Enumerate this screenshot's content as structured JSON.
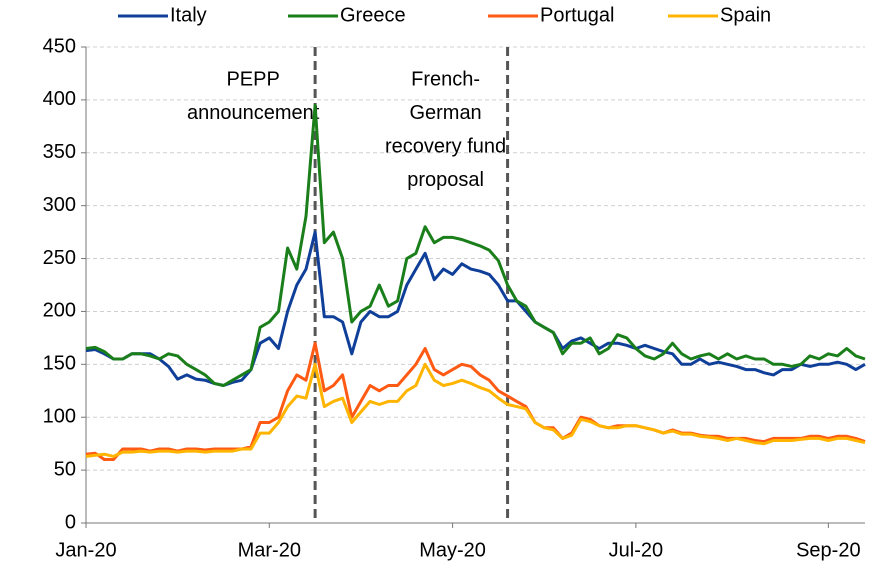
{
  "chart_data": {
    "type": "line",
    "categories": [
      "Jan-20",
      null,
      null,
      null,
      null,
      null,
      null,
      null,
      null,
      null,
      null,
      null,
      null,
      null,
      null,
      null,
      null,
      null,
      null,
      null,
      "Mar-20",
      null,
      null,
      null,
      null,
      null,
      null,
      null,
      null,
      null,
      null,
      null,
      null,
      null,
      null,
      null,
      null,
      null,
      null,
      null,
      "May-20",
      null,
      null,
      null,
      null,
      null,
      null,
      null,
      null,
      null,
      null,
      null,
      null,
      null,
      null,
      null,
      null,
      null,
      null,
      null,
      "Jul-20",
      null,
      null,
      null,
      null,
      null,
      null,
      null,
      null,
      null,
      null,
      null,
      null,
      null,
      null,
      null,
      null,
      null,
      null,
      null,
      null,
      "Sep-20",
      null,
      null,
      null,
      null
    ],
    "series": [
      {
        "name": "Italy",
        "color": "#0f3f99",
        "values": [
          163,
          164,
          160,
          155,
          155,
          160,
          160,
          160,
          155,
          148,
          136,
          140,
          136,
          135,
          132,
          130,
          133,
          135,
          145,
          170,
          175,
          165,
          200,
          225,
          240,
          275,
          195,
          195,
          190,
          160,
          190,
          200,
          195,
          195,
          200,
          225,
          240,
          255,
          230,
          240,
          235,
          245,
          240,
          238,
          235,
          225,
          210,
          210,
          200,
          190,
          185,
          180,
          165,
          172,
          175,
          170,
          165,
          170,
          170,
          168,
          165,
          168,
          165,
          162,
          160,
          150,
          150,
          155,
          150,
          152,
          150,
          148,
          145,
          145,
          142,
          140,
          145,
          145,
          150,
          148,
          150,
          150,
          152,
          150,
          145,
          150
        ]
      },
      {
        "name": "Greece",
        "color": "#1a7f1a",
        "values": [
          165,
          166,
          162,
          155,
          155,
          160,
          160,
          158,
          155,
          160,
          158,
          150,
          145,
          140,
          132,
          130,
          135,
          140,
          145,
          185,
          190,
          200,
          260,
          240,
          290,
          395,
          265,
          275,
          250,
          190,
          200,
          205,
          225,
          205,
          210,
          250,
          255,
          280,
          265,
          270,
          270,
          268,
          265,
          262,
          258,
          248,
          225,
          210,
          205,
          190,
          185,
          180,
          160,
          170,
          170,
          175,
          160,
          165,
          178,
          175,
          165,
          158,
          155,
          160,
          170,
          160,
          155,
          158,
          160,
          155,
          160,
          155,
          158,
          155,
          155,
          150,
          150,
          148,
          150,
          158,
          155,
          160,
          158,
          165,
          158,
          155
        ]
      },
      {
        "name": "Portugal",
        "color": "#ff5a14",
        "values": [
          65,
          66,
          60,
          60,
          70,
          70,
          70,
          68,
          70,
          70,
          68,
          70,
          70,
          69,
          70,
          70,
          70,
          70,
          72,
          95,
          95,
          100,
          125,
          140,
          135,
          170,
          125,
          130,
          140,
          100,
          115,
          130,
          125,
          130,
          130,
          140,
          150,
          165,
          145,
          140,
          145,
          150,
          148,
          140,
          135,
          125,
          120,
          115,
          110,
          95,
          90,
          90,
          80,
          85,
          100,
          98,
          92,
          90,
          92,
          92,
          92,
          90,
          88,
          85,
          88,
          85,
          85,
          83,
          82,
          82,
          80,
          80,
          80,
          78,
          77,
          80,
          80,
          80,
          80,
          82,
          82,
          80,
          82,
          82,
          80,
          77
        ]
      },
      {
        "name": "Spain",
        "color": "#ffb400",
        "values": [
          63,
          64,
          65,
          63,
          67,
          67,
          68,
          67,
          68,
          68,
          67,
          68,
          68,
          67,
          68,
          68,
          68,
          70,
          70,
          85,
          85,
          95,
          110,
          120,
          118,
          150,
          110,
          115,
          118,
          95,
          105,
          115,
          112,
          115,
          115,
          125,
          130,
          150,
          135,
          130,
          132,
          135,
          132,
          128,
          125,
          118,
          112,
          110,
          108,
          95,
          90,
          88,
          80,
          83,
          98,
          96,
          92,
          90,
          90,
          92,
          92,
          90,
          88,
          85,
          87,
          84,
          84,
          82,
          81,
          80,
          78,
          80,
          78,
          76,
          75,
          78,
          78,
          78,
          79,
          80,
          80,
          78,
          80,
          80,
          78,
          76
        ]
      }
    ],
    "ylim": [
      0,
      450
    ],
    "yticks": [
      0,
      50,
      100,
      150,
      200,
      250,
      300,
      350,
      400,
      450
    ],
    "grid": true,
    "legend": "top",
    "annotations": [
      {
        "at": 25,
        "lines": [
          "PEPP",
          "announcement"
        ]
      },
      {
        "at": 46,
        "lines": [
          "French-",
          "German",
          "recovery fund",
          "proposal"
        ]
      }
    ]
  }
}
